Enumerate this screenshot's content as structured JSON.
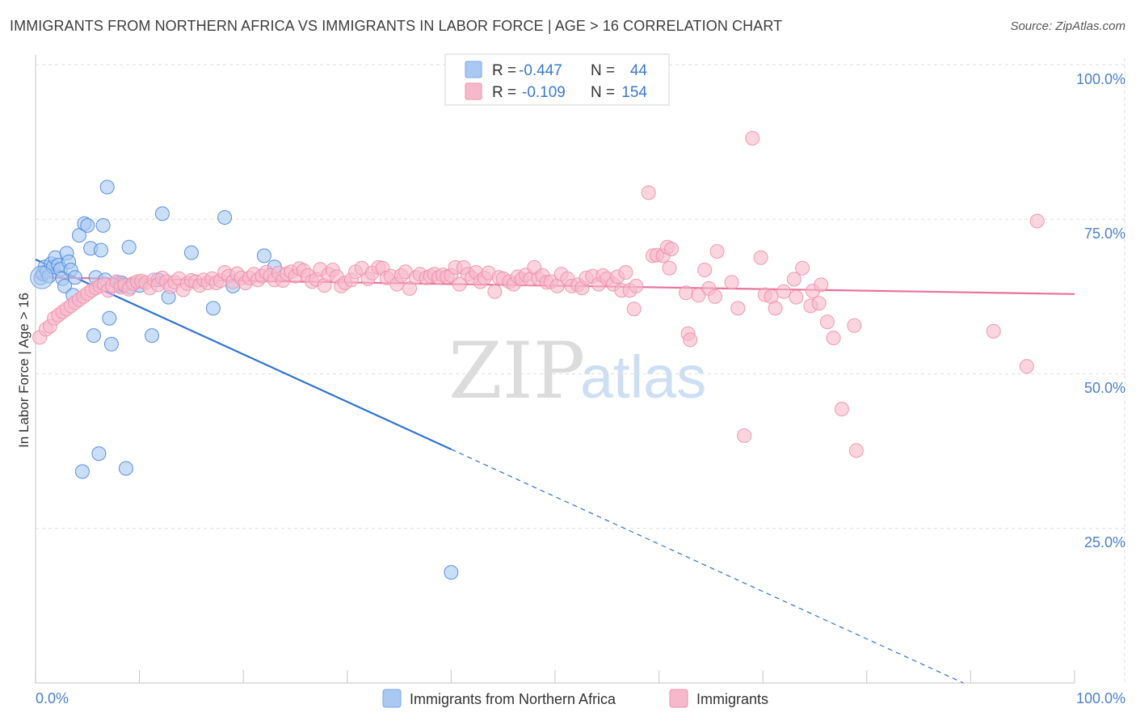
{
  "header": {
    "title": "IMMIGRANTS FROM NORTHERN AFRICA VS IMMIGRANTS IN LABOR FORCE | AGE > 16 CORRELATION CHART",
    "source": "Source: ZipAtlas.com"
  },
  "watermark": {
    "zip": "ZIP",
    "atlas": "atlas"
  },
  "stats_box": {
    "rows": [
      {
        "r_label": "R =",
        "r_value": "-0.447",
        "n_label": "N =",
        "n_value": "44",
        "color": "#a9c8f2"
      },
      {
        "r_label": "R =",
        "r_value": "-0.109",
        "n_label": "N =",
        "n_value": "154",
        "color": "#f6b9cb"
      }
    ]
  },
  "chart_data": {
    "type": "scatter",
    "title": "IMMIGRANTS FROM NORTHERN AFRICA VS IMMIGRANTS IN LABOR FORCE | AGE > 16 CORRELATION CHART",
    "xlabel": "",
    "ylabel": "In Labor Force | Age > 16",
    "xlim": [
      0,
      100
    ],
    "ylim": [
      0,
      100
    ],
    "x_tick_labels": [
      "0.0%",
      "100.0%"
    ],
    "y_tick_values": [
      25,
      50,
      75,
      100
    ],
    "y_tick_labels": [
      "25.0%",
      "50.0%",
      "75.0%",
      "100.0%"
    ],
    "grid": true,
    "legend_position": "bottom-center",
    "series": [
      {
        "name": "Immigrants from Northern Africa",
        "color": "#4a87d8",
        "fill": "#a9c8f2",
        "line_color": "#2f72d2",
        "trend": {
          "x0": 0,
          "y0": 68.5,
          "x1": 40,
          "y1": 37.8,
          "x_dash_end": 89.3,
          "y_dash_end": 0
        },
        "points": [
          [
            0.5,
            65.5
          ],
          [
            0.7,
            66.2
          ],
          [
            0.9,
            67.3
          ],
          [
            1.1,
            66.5
          ],
          [
            1.3,
            65.8
          ],
          [
            1.5,
            67.8
          ],
          [
            1.7,
            67.3
          ],
          [
            1.9,
            68.8
          ],
          [
            2.2,
            67.6
          ],
          [
            2.4,
            66.9
          ],
          [
            2.6,
            65.4
          ],
          [
            2.8,
            64.2
          ],
          [
            3.0,
            69.5
          ],
          [
            3.2,
            68.1
          ],
          [
            3.4,
            66.8
          ],
          [
            3.6,
            62.7
          ],
          [
            3.8,
            65.6
          ],
          [
            4.2,
            72.4
          ],
          [
            4.5,
            34.2
          ],
          [
            4.7,
            74.3
          ],
          [
            5.0,
            74.0
          ],
          [
            5.3,
            70.3
          ],
          [
            5.6,
            56.2
          ],
          [
            5.8,
            65.6
          ],
          [
            6.1,
            37.1
          ],
          [
            6.3,
            70.0
          ],
          [
            6.5,
            74.0
          ],
          [
            6.7,
            65.2
          ],
          [
            6.9,
            80.2
          ],
          [
            7.1,
            59.0
          ],
          [
            7.3,
            54.8
          ],
          [
            7.9,
            64.7
          ],
          [
            8.1,
            64.3
          ],
          [
            8.3,
            64.7
          ],
          [
            8.5,
            64.3
          ],
          [
            8.7,
            34.7
          ],
          [
            9.1,
            64.0
          ],
          [
            9.0,
            70.5
          ],
          [
            10.0,
            64.3
          ],
          [
            11.2,
            56.2
          ],
          [
            11.8,
            65.2
          ],
          [
            12.2,
            75.9
          ],
          [
            12.8,
            62.4
          ],
          [
            15.0,
            69.6
          ],
          [
            17.1,
            60.6
          ],
          [
            18.2,
            75.3
          ],
          [
            19.0,
            64.2
          ],
          [
            22.0,
            69.1
          ],
          [
            23.0,
            67.3
          ],
          [
            40.0,
            17.9
          ]
        ]
      },
      {
        "name": "Immigrants",
        "color": "#ee8fac",
        "fill": "#f6b9cb",
        "line_color": "#e8729a",
        "trend": {
          "x0": 0,
          "y0": 65.6,
          "x1": 100,
          "y1": 62.9
        },
        "points": [
          [
            0.4,
            55.9
          ],
          [
            1.0,
            57.2
          ],
          [
            1.4,
            57.7
          ],
          [
            1.8,
            59.0
          ],
          [
            2.2,
            59.5
          ],
          [
            2.6,
            60.0
          ],
          [
            3.0,
            60.5
          ],
          [
            3.4,
            61.0
          ],
          [
            3.8,
            61.5
          ],
          [
            4.2,
            62.0
          ],
          [
            4.6,
            62.5
          ],
          [
            5.0,
            63.0
          ],
          [
            5.4,
            63.5
          ],
          [
            5.8,
            63.9
          ],
          [
            6.2,
            64.2
          ],
          [
            6.6,
            64.5
          ],
          [
            7.0,
            63.5
          ],
          [
            7.4,
            64.3
          ],
          [
            7.8,
            64.9
          ],
          [
            8.2,
            64.0
          ],
          [
            8.6,
            64.4
          ],
          [
            9.0,
            63.7
          ],
          [
            9.4,
            64.6
          ],
          [
            9.8,
            64.9
          ],
          [
            10.2,
            65.0
          ],
          [
            10.6,
            64.7
          ],
          [
            11.0,
            63.9
          ],
          [
            11.4,
            65.2
          ],
          [
            11.8,
            64.4
          ],
          [
            12.2,
            65.5
          ],
          [
            12.6,
            64.9
          ],
          [
            13.0,
            64.1
          ],
          [
            13.4,
            64.8
          ],
          [
            13.8,
            65.4
          ],
          [
            14.2,
            63.6
          ],
          [
            14.6,
            64.6
          ],
          [
            15.0,
            65.1
          ],
          [
            15.4,
            64.9
          ],
          [
            15.8,
            64.3
          ],
          [
            16.2,
            65.2
          ],
          [
            16.6,
            64.7
          ],
          [
            17.0,
            65.4
          ],
          [
            17.4,
            64.7
          ],
          [
            17.8,
            65.1
          ],
          [
            18.2,
            66.4
          ],
          [
            18.6,
            65.8
          ],
          [
            19.0,
            64.9
          ],
          [
            19.4,
            66.2
          ],
          [
            19.8,
            65.5
          ],
          [
            20.2,
            64.7
          ],
          [
            20.6,
            65.5
          ],
          [
            21.0,
            66.1
          ],
          [
            21.4,
            65.2
          ],
          [
            21.8,
            65.8
          ],
          [
            22.2,
            66.4
          ],
          [
            22.6,
            65.9
          ],
          [
            23.0,
            65.2
          ],
          [
            23.4,
            66.3
          ],
          [
            23.8,
            65.1
          ],
          [
            24.2,
            66.2
          ],
          [
            24.6,
            66.5
          ],
          [
            25.0,
            65.8
          ],
          [
            25.4,
            67.0
          ],
          [
            25.8,
            66.7
          ],
          [
            26.2,
            65.9
          ],
          [
            26.6,
            64.9
          ],
          [
            27.0,
            65.3
          ],
          [
            27.4,
            66.9
          ],
          [
            27.8,
            64.3
          ],
          [
            28.2,
            66.1
          ],
          [
            28.6,
            66.8
          ],
          [
            29.0,
            65.7
          ],
          [
            29.4,
            64.2
          ],
          [
            29.8,
            64.7
          ],
          [
            30.4,
            65.2
          ],
          [
            30.8,
            66.5
          ],
          [
            31.4,
            67.1
          ],
          [
            32.0,
            65.4
          ],
          [
            32.4,
            66.3
          ],
          [
            33.0,
            67.2
          ],
          [
            33.4,
            67.1
          ],
          [
            33.8,
            65.5
          ],
          [
            34.2,
            65.8
          ],
          [
            34.8,
            64.5
          ],
          [
            35.2,
            65.9
          ],
          [
            35.6,
            66.5
          ],
          [
            36.0,
            63.8
          ],
          [
            36.6,
            65.6
          ],
          [
            37.0,
            66.1
          ],
          [
            37.6,
            65.5
          ],
          [
            38.0,
            65.8
          ],
          [
            38.4,
            66.1
          ],
          [
            38.8,
            65.6
          ],
          [
            39.2,
            66.0
          ],
          [
            39.6,
            65.7
          ],
          [
            40.0,
            65.9
          ],
          [
            40.4,
            67.2
          ],
          [
            40.8,
            64.5
          ],
          [
            41.2,
            67.2
          ],
          [
            41.6,
            66.1
          ],
          [
            42.0,
            65.5
          ],
          [
            42.4,
            66.4
          ],
          [
            42.8,
            64.9
          ],
          [
            43.2,
            65.5
          ],
          [
            43.6,
            66.3
          ],
          [
            44.2,
            63.3
          ],
          [
            44.6,
            65.6
          ],
          [
            45.0,
            65.4
          ],
          [
            45.6,
            64.9
          ],
          [
            46.0,
            64.5
          ],
          [
            46.4,
            65.7
          ],
          [
            46.8,
            65.3
          ],
          [
            47.2,
            66.0
          ],
          [
            47.6,
            65.3
          ],
          [
            48.0,
            67.2
          ],
          [
            48.4,
            65.4
          ],
          [
            48.8,
            65.9
          ],
          [
            49.2,
            64.8
          ],
          [
            49.6,
            64.9
          ],
          [
            50.2,
            64.2
          ],
          [
            50.6,
            66.1
          ],
          [
            51.2,
            65.4
          ],
          [
            51.6,
            64.2
          ],
          [
            52.2,
            64.4
          ],
          [
            52.6,
            63.9
          ],
          [
            53.0,
            65.5
          ],
          [
            53.6,
            65.8
          ],
          [
            54.2,
            64.5
          ],
          [
            54.6,
            65.9
          ],
          [
            55.0,
            65.4
          ],
          [
            55.6,
            64.5
          ],
          [
            56.0,
            65.7
          ],
          [
            56.4,
            63.5
          ],
          [
            56.8,
            66.4
          ],
          [
            57.2,
            63.5
          ],
          [
            57.6,
            60.5
          ],
          [
            57.8,
            64.2
          ],
          [
            59.0,
            79.3
          ],
          [
            59.4,
            69.1
          ],
          [
            59.8,
            69.2
          ],
          [
            60.4,
            69.1
          ],
          [
            60.8,
            70.5
          ],
          [
            61.0,
            67.1
          ],
          [
            61.2,
            70.2
          ],
          [
            62.6,
            63.1
          ],
          [
            62.8,
            56.5
          ],
          [
            63.0,
            55.5
          ],
          [
            63.8,
            62.7
          ],
          [
            64.4,
            66.8
          ],
          [
            64.8,
            63.8
          ],
          [
            65.4,
            62.5
          ],
          [
            65.6,
            69.8
          ],
          [
            67.0,
            64.8
          ],
          [
            67.6,
            60.6
          ],
          [
            68.2,
            40.0
          ],
          [
            69.0,
            88.1
          ],
          [
            69.8,
            68.8
          ],
          [
            70.2,
            62.8
          ],
          [
            70.8,
            62.5
          ],
          [
            71.2,
            60.6
          ],
          [
            72.0,
            63.3
          ],
          [
            73.0,
            65.3
          ],
          [
            73.2,
            62.4
          ],
          [
            73.8,
            67.1
          ],
          [
            74.6,
            61.0
          ],
          [
            74.8,
            63.4
          ],
          [
            75.4,
            61.4
          ],
          [
            75.6,
            64.4
          ],
          [
            76.2,
            58.4
          ],
          [
            76.8,
            55.8
          ],
          [
            77.6,
            44.3
          ],
          [
            78.8,
            57.8
          ],
          [
            79.0,
            37.6
          ],
          [
            92.2,
            56.9
          ],
          [
            95.4,
            51.2
          ],
          [
            96.4,
            74.7
          ]
        ]
      }
    ]
  }
}
